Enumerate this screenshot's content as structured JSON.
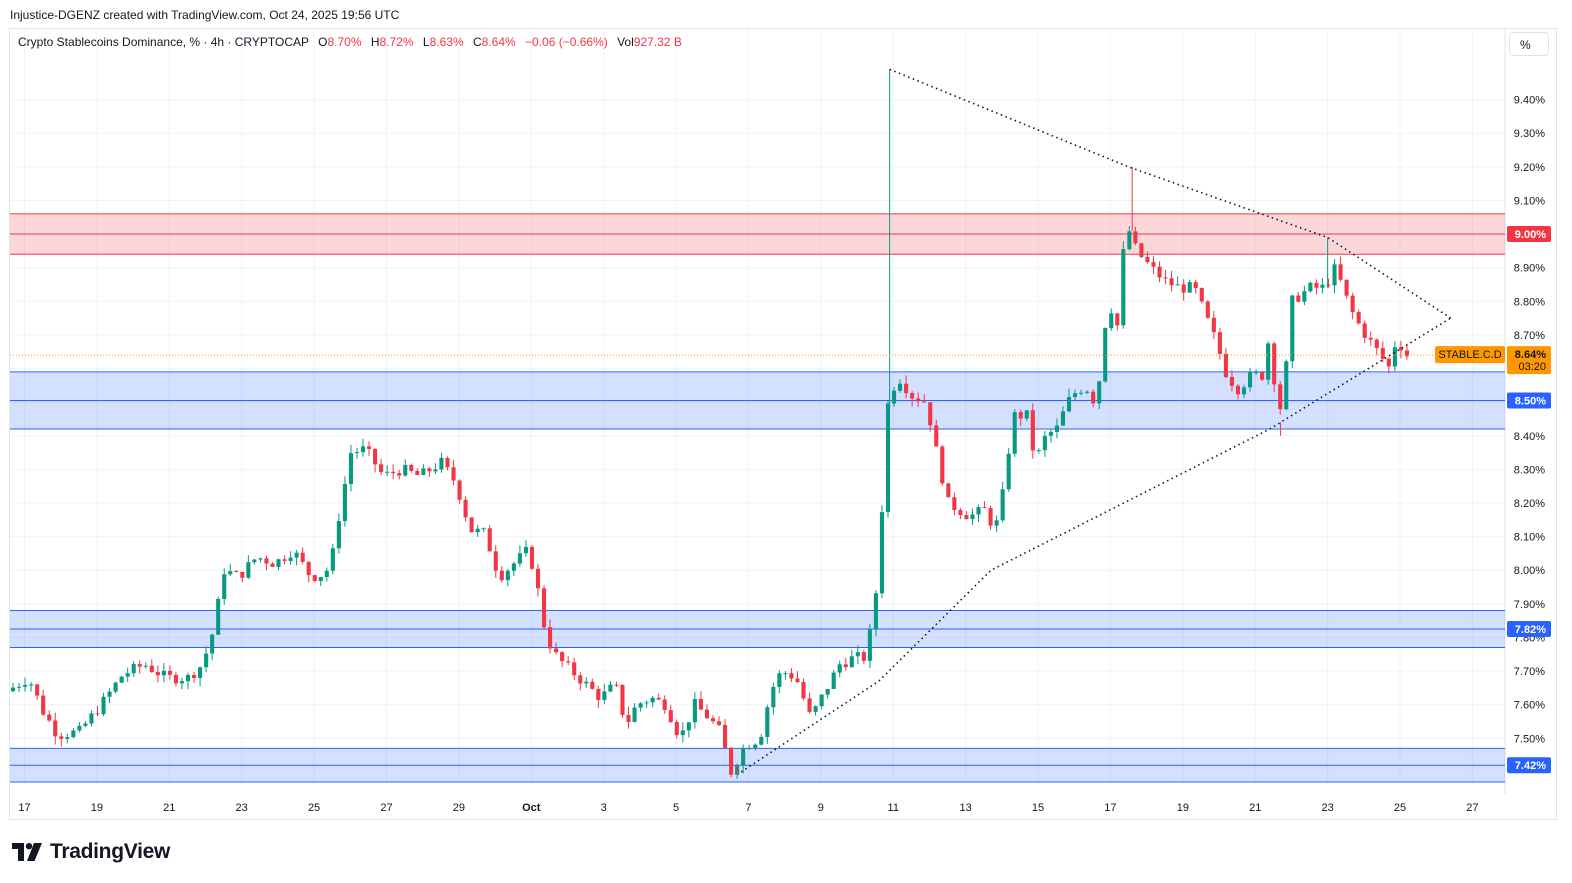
{
  "header": {
    "credit": "Injustice-DGENZ created with TradingView.com, Oct 24, 2025 19:56 UTC"
  },
  "legend": {
    "symbol": "Crypto Stablecoins Dominance, % · 4h · CRYPTOCAP",
    "o_label": "O",
    "o_value": "8.70%",
    "h_label": "H",
    "h_value": "8.72%",
    "l_label": "L",
    "l_value": "8.63%",
    "c_label": "C",
    "c_value": "8.64%",
    "change": "−0.06 (−0.66%)",
    "vol_label": "Vol",
    "vol_value": "927.32 B"
  },
  "toolbar": {
    "percent_button": "%"
  },
  "brand": {
    "name": "TradingView"
  },
  "colors": {
    "up": "#089981",
    "down": "#f23645",
    "resistance_zone": "#f23645",
    "support_zone": "#2962ff",
    "price_tag": "#ff9800"
  },
  "chart_data": {
    "type": "candlestick",
    "title": "Crypto Stablecoins Dominance, % · 4h · CRYPTOCAP",
    "ylim": [
      7.37,
      9.61
    ],
    "y_unit": "%",
    "y_ticks": [
      "7.50%",
      "7.60%",
      "7.70%",
      "7.80%",
      "7.90%",
      "8.00%",
      "8.10%",
      "8.20%",
      "8.30%",
      "8.40%",
      "8.50%",
      "8.60%",
      "8.70%",
      "8.80%",
      "8.90%",
      "9.00%",
      "9.10%",
      "9.20%",
      "9.30%",
      "9.40%"
    ],
    "x_ticks": [
      {
        "label": "17",
        "day": 17
      },
      {
        "label": "19",
        "day": 19
      },
      {
        "label": "21",
        "day": 21
      },
      {
        "label": "23",
        "day": 23
      },
      {
        "label": "25",
        "day": 25
      },
      {
        "label": "27",
        "day": 27
      },
      {
        "label": "29",
        "day": 29
      },
      {
        "label": "Oct",
        "day": 31
      },
      {
        "label": "3",
        "day": 33
      },
      {
        "label": "5",
        "day": 35
      },
      {
        "label": "7",
        "day": 37
      },
      {
        "label": "9",
        "day": 39
      },
      {
        "label": "11",
        "day": 41
      },
      {
        "label": "13",
        "day": 43
      },
      {
        "label": "15",
        "day": 45
      },
      {
        "label": "17",
        "day": 47
      },
      {
        "label": "19",
        "day": 49
      },
      {
        "label": "21",
        "day": 51
      },
      {
        "label": "23",
        "day": 53
      },
      {
        "label": "25",
        "day": 55
      },
      {
        "label": "27",
        "day": 57
      }
    ],
    "x_axis_note": "x values are days counted from Sep 17 as 17 (Oct 1 = 31)",
    "anchors": [
      [
        16.6,
        7.64
      ],
      [
        17.2,
        7.68
      ],
      [
        17.6,
        7.58
      ],
      [
        18.0,
        7.51
      ],
      [
        18.6,
        7.52
      ],
      [
        19.2,
        7.6
      ],
      [
        19.8,
        7.69
      ],
      [
        20.4,
        7.72
      ],
      [
        21.0,
        7.68
      ],
      [
        21.6,
        7.68
      ],
      [
        22.0,
        7.72
      ],
      [
        22.3,
        7.82
      ],
      [
        22.6,
        8.0
      ],
      [
        23.0,
        7.98
      ],
      [
        23.5,
        8.04
      ],
      [
        24.0,
        8.02
      ],
      [
        24.5,
        8.06
      ],
      [
        25.0,
        7.98
      ],
      [
        25.4,
        7.99
      ],
      [
        25.6,
        8.05
      ],
      [
        25.8,
        8.18
      ],
      [
        26.1,
        8.35
      ],
      [
        26.5,
        8.36
      ],
      [
        27.0,
        8.28
      ],
      [
        27.5,
        8.3
      ],
      [
        28.0,
        8.28
      ],
      [
        28.6,
        8.32
      ],
      [
        29.0,
        8.26
      ],
      [
        29.4,
        8.12
      ],
      [
        29.8,
        8.11
      ],
      [
        30.2,
        7.98
      ],
      [
        30.6,
        8.02
      ],
      [
        31.0,
        8.06
      ],
      [
        31.2,
        7.98
      ],
      [
        31.5,
        7.8
      ],
      [
        31.8,
        7.74
      ],
      [
        32.2,
        7.7
      ],
      [
        32.6,
        7.66
      ],
      [
        33.0,
        7.62
      ],
      [
        33.4,
        7.66
      ],
      [
        33.7,
        7.54
      ],
      [
        34.0,
        7.6
      ],
      [
        34.4,
        7.62
      ],
      [
        34.8,
        7.6
      ],
      [
        35.2,
        7.5
      ],
      [
        35.6,
        7.6
      ],
      [
        36.0,
        7.56
      ],
      [
        36.3,
        7.52
      ],
      [
        36.6,
        7.4
      ],
      [
        37.0,
        7.48
      ],
      [
        37.4,
        7.5
      ],
      [
        37.7,
        7.64
      ],
      [
        38.0,
        7.7
      ],
      [
        38.4,
        7.68
      ],
      [
        38.8,
        7.56
      ],
      [
        39.2,
        7.64
      ],
      [
        39.6,
        7.72
      ],
      [
        40.0,
        7.74
      ],
      [
        40.3,
        7.74
      ],
      [
        40.5,
        7.84
      ],
      [
        40.7,
        8.02
      ],
      [
        40.9,
        8.48
      ],
      [
        41.2,
        8.58
      ],
      [
        41.6,
        8.52
      ],
      [
        42.0,
        8.5
      ],
      [
        42.3,
        8.34
      ],
      [
        42.6,
        8.2
      ],
      [
        42.9,
        8.18
      ],
      [
        43.2,
        8.16
      ],
      [
        43.6,
        8.18
      ],
      [
        43.9,
        8.12
      ],
      [
        44.1,
        8.22
      ],
      [
        44.4,
        8.46
      ],
      [
        44.8,
        8.46
      ],
      [
        45.0,
        8.32
      ],
      [
        45.3,
        8.4
      ],
      [
        45.6,
        8.42
      ],
      [
        45.9,
        8.5
      ],
      [
        46.2,
        8.54
      ],
      [
        46.5,
        8.54
      ],
      [
        46.7,
        8.48
      ],
      [
        46.9,
        8.72
      ],
      [
        47.1,
        8.78
      ],
      [
        47.3,
        8.72
      ],
      [
        47.5,
        9.04
      ],
      [
        47.8,
        8.95
      ],
      [
        48.2,
        8.9
      ],
      [
        48.6,
        8.86
      ],
      [
        49.0,
        8.84
      ],
      [
        49.4,
        8.84
      ],
      [
        49.7,
        8.76
      ],
      [
        50.0,
        8.68
      ],
      [
        50.3,
        8.58
      ],
      [
        50.6,
        8.54
      ],
      [
        51.0,
        8.58
      ],
      [
        51.3,
        8.58
      ],
      [
        51.5,
        8.72
      ],
      [
        51.7,
        8.44
      ],
      [
        51.9,
        8.56
      ],
      [
        52.1,
        8.8
      ],
      [
        52.6,
        8.84
      ],
      [
        53.0,
        8.84
      ],
      [
        53.3,
        8.9
      ],
      [
        53.7,
        8.78
      ],
      [
        54.0,
        8.72
      ],
      [
        54.4,
        8.66
      ],
      [
        54.8,
        8.6
      ],
      [
        55.0,
        8.7
      ],
      [
        55.2,
        8.64
      ]
    ],
    "candle_step_days": 0.1667,
    "annotations": {
      "resistance_zone": {
        "from": 8.94,
        "to": 9.06,
        "label": "9.00%"
      },
      "support_zones": [
        {
          "from": 8.42,
          "to": 8.59,
          "label": "8.50%"
        },
        {
          "from": 7.77,
          "to": 7.88,
          "label": "7.82%"
        },
        {
          "from": 7.37,
          "to": 7.47,
          "label": "7.42%"
        }
      ],
      "triangle_upper": [
        [
          40.9,
          9.49
        ],
        [
          47.5,
          9.2
        ],
        [
          53.0,
          8.99
        ],
        [
          56.4,
          8.75
        ]
      ],
      "triangle_lower": [
        [
          36.8,
          7.4
        ],
        [
          40.6,
          7.67
        ],
        [
          43.7,
          8.0
        ],
        [
          51.4,
          8.42
        ],
        [
          56.4,
          8.75
        ]
      ],
      "spikes": [
        {
          "x": 40.9,
          "high": 9.49
        },
        {
          "x": 47.6,
          "high": 9.2
        },
        {
          "x": 53.0,
          "high": 8.99
        },
        {
          "x": 51.7,
          "low": 8.4
        },
        {
          "x": 36.7,
          "low": 7.39
        }
      ]
    },
    "last_price": {
      "value": 8.64,
      "symbol": "STABLE.C.D",
      "price_label": "8.64%",
      "countdown": "03:20"
    }
  }
}
